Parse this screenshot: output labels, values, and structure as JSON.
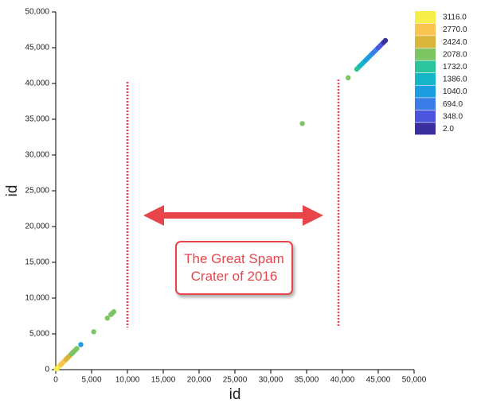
{
  "chart_data": {
    "type": "scatter",
    "xlabel": "id",
    "ylabel": "id",
    "annotation": "The Great Spam Crater of 2016",
    "xlim": [
      0,
      50000
    ],
    "ylim": [
      0,
      50000
    ],
    "xticks": [
      0,
      {
        "value": 5000,
        "label": "5,000"
      },
      {
        "value": 10000,
        "label": "10,000"
      },
      {
        "value": 15000,
        "label": "15,000"
      },
      {
        "value": 20000,
        "label": "20,000"
      },
      {
        "value": 25000,
        "label": "25,000"
      },
      {
        "value": 30000,
        "label": "30,000"
      },
      {
        "value": 35000,
        "label": "35,000"
      },
      {
        "value": 40000,
        "label": "40,000"
      },
      {
        "value": 45000,
        "label": "45,000"
      },
      {
        "value": 50000,
        "label": "50,000"
      }
    ],
    "yticks": [
      0,
      {
        "value": 5000,
        "label": "5,000"
      },
      {
        "value": 10000,
        "label": "10,000"
      },
      {
        "value": 15000,
        "label": "15,000"
      },
      {
        "value": 20000,
        "label": "20,000"
      },
      {
        "value": 25000,
        "label": "25,000"
      },
      {
        "value": 30000,
        "label": "30,000"
      },
      {
        "value": 35000,
        "label": "35,000"
      },
      {
        "value": 40000,
        "label": "40,000"
      },
      {
        "value": 45000,
        "label": "45,000"
      },
      {
        "value": 50000,
        "label": "50,000"
      }
    ],
    "legend": [
      {
        "value": 3116,
        "label": "3116.0",
        "color": "#f6ee4a"
      },
      {
        "value": 2770,
        "label": "2770.0",
        "color": "#f9c54e"
      },
      {
        "value": 2424,
        "label": "2424.0",
        "color": "#d9b53a"
      },
      {
        "value": 2078,
        "label": "2078.0",
        "color": "#7cc562"
      },
      {
        "value": 1732,
        "label": "1732.0",
        "color": "#2cc49c"
      },
      {
        "value": 1386,
        "label": "1386.0",
        "color": "#17b5c8"
      },
      {
        "value": 1040,
        "label": "1040.0",
        "color": "#1c9ddf"
      },
      {
        "value": 694,
        "label": "694.0",
        "color": "#3a7de8"
      },
      {
        "value": 348,
        "label": "348.0",
        "color": "#4c55de"
      },
      {
        "value": 2,
        "label": "2.0",
        "color": "#3b2f9f"
      }
    ],
    "x": [
      100,
      250,
      400,
      550,
      700,
      850,
      1000,
      1150,
      1300,
      1450,
      1600,
      1750,
      1900,
      2050,
      2200,
      2350,
      2500,
      2650,
      2800,
      2950,
      3500,
      5300,
      7200,
      7700,
      7900,
      8100,
      34400,
      40800,
      42000,
      42250,
      42500,
      42750,
      43000,
      43250,
      43500,
      43750,
      44000,
      44250,
      44500,
      44750,
      45000,
      45250,
      45500,
      45750,
      46000
    ],
    "y": [
      100,
      250,
      400,
      550,
      700,
      850,
      1000,
      1150,
      1300,
      1450,
      1600,
      1750,
      1900,
      2050,
      2200,
      2350,
      2500,
      2650,
      2800,
      2950,
      3500,
      5300,
      7200,
      7700,
      7900,
      8100,
      34400,
      40800,
      42000,
      42250,
      42500,
      42750,
      43000,
      43250,
      43500,
      43750,
      44000,
      44250,
      44500,
      44750,
      45000,
      45250,
      45500,
      45750,
      46000
    ],
    "values": [
      3116,
      3116,
      2950,
      2950,
      2770,
      2770,
      2770,
      2600,
      2600,
      2424,
      2424,
      2424,
      2300,
      2300,
      2200,
      2200,
      2078,
      2078,
      2078,
      2078,
      1040,
      2078,
      2078,
      2078,
      2078,
      2078,
      2078,
      2078,
      1732,
      1600,
      1500,
      1386,
      1300,
      1200,
      1100,
      1040,
      900,
      800,
      694,
      600,
      500,
      348,
      250,
      100,
      2
    ]
  }
}
